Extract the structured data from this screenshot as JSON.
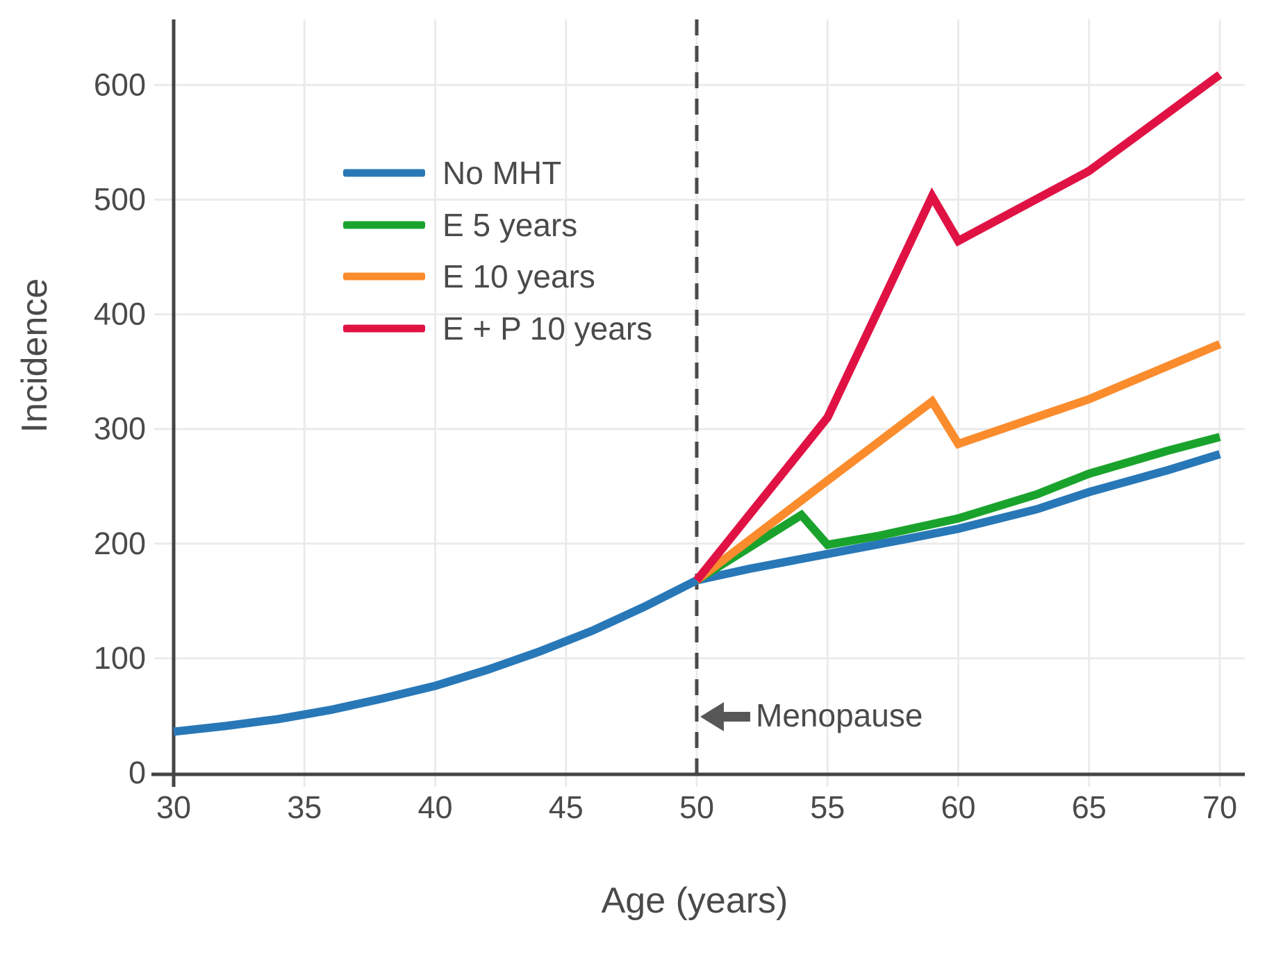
{
  "chart_data": {
    "type": "line",
    "title": "",
    "xlabel": "Age (years)",
    "ylabel": "Incidence",
    "xlim": [
      30,
      71
    ],
    "ylim": [
      0,
      655
    ],
    "x_ticks": [
      30,
      35,
      40,
      45,
      50,
      55,
      60,
      65,
      70
    ],
    "y_ticks": [
      0,
      100,
      200,
      300,
      400,
      500,
      600
    ],
    "grid": true,
    "legend_position": "upper-left-inside",
    "annotations": [
      {
        "text": "Menopause",
        "icon": "left-arrow",
        "x": 50,
        "y": 50
      }
    ],
    "reference_line": {
      "x": 50,
      "style": "dashed",
      "label": "Menopause"
    },
    "series": [
      {
        "name": "No MHT",
        "color": "#2878b8",
        "points": [
          [
            30,
            36
          ],
          [
            32,
            41
          ],
          [
            34,
            47
          ],
          [
            36,
            55
          ],
          [
            38,
            65
          ],
          [
            40,
            76
          ],
          [
            42,
            90
          ],
          [
            44,
            106
          ],
          [
            46,
            124
          ],
          [
            48,
            145
          ],
          [
            50,
            168
          ],
          [
            52,
            178
          ],
          [
            55,
            191
          ],
          [
            58,
            204
          ],
          [
            60,
            213
          ],
          [
            63,
            230
          ],
          [
            65,
            245
          ],
          [
            68,
            264
          ],
          [
            70,
            278
          ]
        ]
      },
      {
        "name": "E 5 years",
        "color": "#1aa32c",
        "points": [
          [
            50,
            168
          ],
          [
            54,
            225
          ],
          [
            55,
            199
          ],
          [
            57,
            207
          ],
          [
            60,
            222
          ],
          [
            63,
            243
          ],
          [
            65,
            261
          ],
          [
            68,
            281
          ],
          [
            70,
            293
          ]
        ]
      },
      {
        "name": "E 10 years",
        "color": "#fa8c2d",
        "points": [
          [
            50,
            168
          ],
          [
            55,
            255
          ],
          [
            59,
            324
          ],
          [
            60,
            287
          ],
          [
            65,
            326
          ],
          [
            70,
            374
          ]
        ]
      },
      {
        "name": "E + P 10 years",
        "color": "#e01244",
        "points": [
          [
            50,
            168
          ],
          [
            55,
            310
          ],
          [
            59,
            503
          ],
          [
            60,
            464
          ],
          [
            65,
            525
          ],
          [
            70,
            609
          ]
        ]
      }
    ],
    "styles": {
      "grid_color": "#ebebeb",
      "spine_color": "#444444",
      "text_color": "#4a4a4a",
      "dashed_line_color": "#4a4a4a",
      "arrow_color": "#575757",
      "background": "#ffffff"
    }
  }
}
